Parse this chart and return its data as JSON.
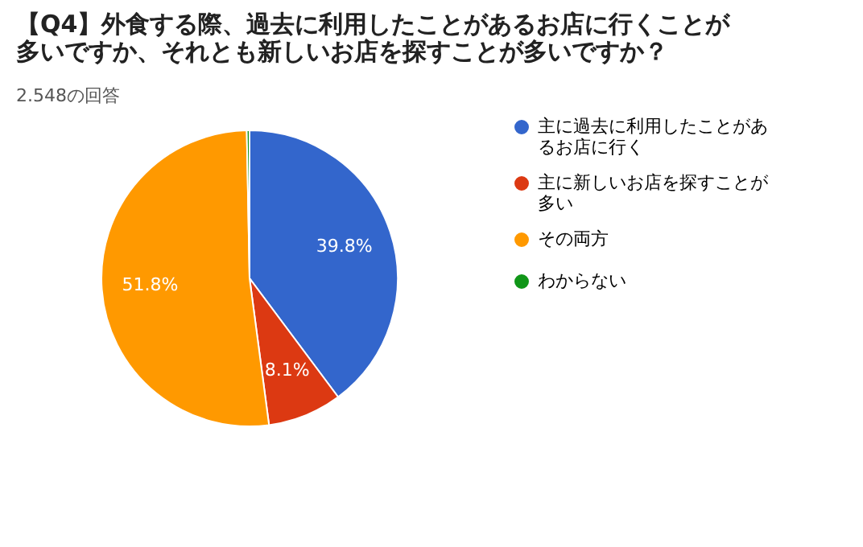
{
  "chart_data": {
    "type": "pie",
    "title": "【Q4】外食する際、過去に利用したことがあるお店に行くことが多いですか、それとも新しいお店を探すことが多いですか？",
    "subtitle": "2.548の回答",
    "categories": [
      "主に過去に利用したことがあるお店に行く",
      "主に新しいお店を探すことが多い",
      "その両方",
      "わからない"
    ],
    "values": [
      39.8,
      8.1,
      51.8,
      0.3
    ],
    "colors": [
      "#3366cc",
      "#dc3912",
      "#ff9900",
      "#109618"
    ],
    "value_labels": [
      "39.8%",
      "8.1%",
      "51.8%",
      null
    ],
    "legend": "right"
  }
}
